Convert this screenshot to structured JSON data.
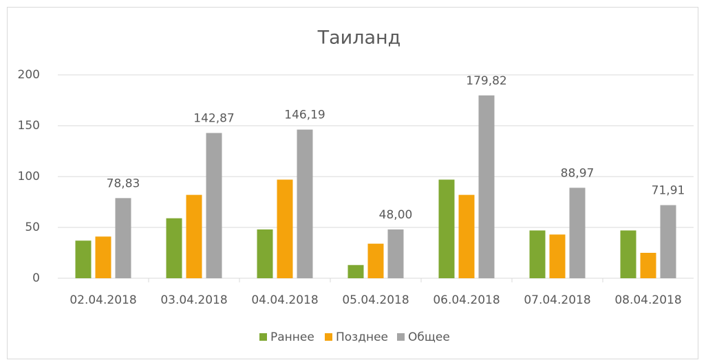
{
  "chart_data": {
    "type": "bar",
    "title": "Таиланд",
    "categories": [
      "02.04.2018",
      "03.04.2018",
      "04.04.2018",
      "05.04.2018",
      "06.04.2018",
      "07.04.2018",
      "08.04.2018"
    ],
    "series": [
      {
        "name": "Раннее",
        "color": "#7fa832",
        "values": [
          37,
          59,
          48,
          13,
          97,
          47,
          47
        ]
      },
      {
        "name": "Позднее",
        "color": "#f5a30c",
        "values": [
          41,
          82,
          97,
          34,
          82,
          43,
          25
        ]
      },
      {
        "name": "Общее",
        "color": "#a5a5a5",
        "values": [
          78.83,
          142.87,
          146.19,
          48,
          179.82,
          88.97,
          71.91
        ],
        "value_labels": [
          "78,83",
          "142,87",
          "146,19",
          "48,00",
          "179,82",
          "88,97",
          "71,91"
        ]
      }
    ],
    "ylim": [
      0,
      200
    ],
    "yticks": [
      0,
      50,
      100,
      150,
      200
    ],
    "grid": true,
    "legend": "bottom"
  }
}
